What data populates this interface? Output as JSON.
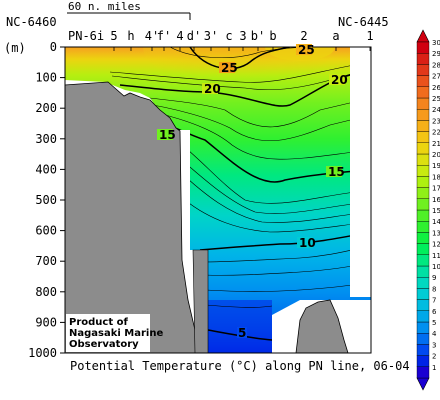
{
  "chart_data": {
    "type": "heatmap",
    "caption": "Potential Temperature (°C) along PN line, 06-04",
    "scale_label": "60 n. miles",
    "y_unit": "(m)",
    "ylim": [
      1000,
      0
    ],
    "y_ticks": [
      0,
      100,
      200,
      300,
      400,
      500,
      600,
      700,
      800,
      900,
      1000
    ],
    "stations_top": [
      "PN-6i",
      "5",
      "h",
      "4'",
      "f'",
      "4",
      "d'",
      "3'",
      "c",
      "3",
      "b'",
      "b",
      "2",
      "a",
      "1"
    ],
    "end_labels": [
      "NC-6460",
      "NC-6445"
    ],
    "colorbar": {
      "min": 1,
      "max": 30,
      "step": 1,
      "ticks": [
        1,
        2,
        3,
        4,
        5,
        6,
        7,
        8,
        9,
        10,
        11,
        12,
        13,
        14,
        15,
        16,
        17,
        18,
        19,
        20,
        21,
        22,
        23,
        24,
        25,
        26,
        27,
        28,
        29,
        30
      ],
      "colors": [
        "#1a00d2",
        "#0024e6",
        "#0049f0",
        "#006ef0",
        "#0090f0",
        "#00a8e8",
        "#00bce0",
        "#00ccd4",
        "#00d8c0",
        "#00e0a4",
        "#00e880",
        "#00ee5c",
        "#10f040",
        "#30f030",
        "#50f028",
        "#70f020",
        "#90f018",
        "#aef010",
        "#c8ea10",
        "#dce010",
        "#ecd410",
        "#f4c414",
        "#f6b018",
        "#f69a1c",
        "#f4841e",
        "#f06c1e",
        "#ea521c",
        "#e2381a",
        "#da2016",
        "#d00010"
      ]
    },
    "contours": [
      {
        "label": "25",
        "level": 25
      },
      {
        "label": "20",
        "level": 20
      },
      {
        "label": "15",
        "level": 15
      },
      {
        "label": "10",
        "level": 10
      },
      {
        "label": "5",
        "level": 5
      }
    ],
    "credit": [
      "Product of",
      "Nagasaki Marine",
      "Observatory"
    ]
  }
}
